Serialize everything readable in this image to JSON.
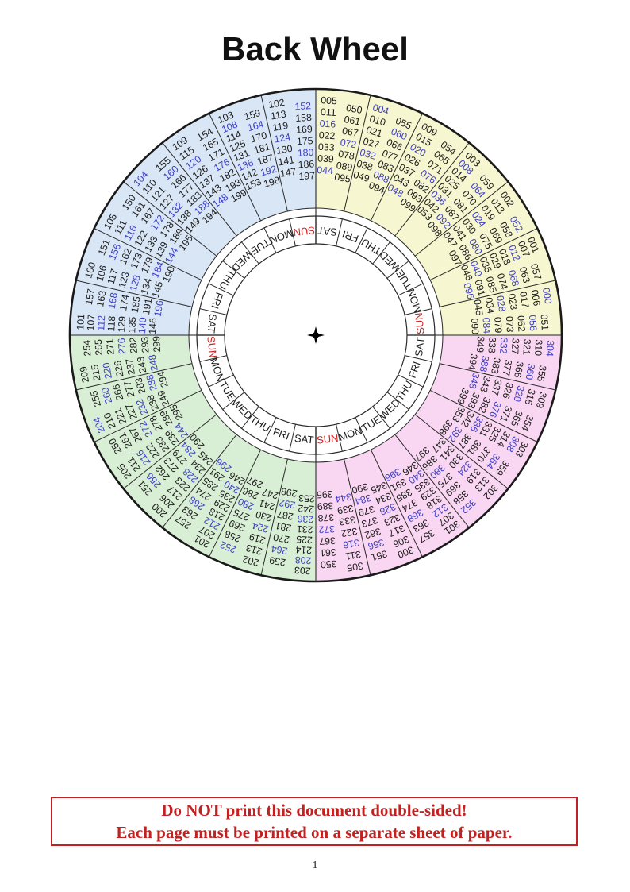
{
  "page": {
    "title": "Back Wheel",
    "page_number": "1"
  },
  "warning": {
    "line1": "Do NOT print this document double-sided!",
    "line2": "Each page must be printed on a separate sheet of paper."
  },
  "colors": {
    "number": "#1c1c1c",
    "leap_number": "#3e3ec5",
    "sunday_red": "#cc2222",
    "warning_red": "#c22121",
    "line": "#2a2a2a",
    "quadrant_line": "#666666",
    "outer_border": "#1a1a1a",
    "star": "#000000"
  },
  "day_ring": {
    "days_clockwise_from_top": [
      "SAT",
      "FRI",
      "THU",
      "WED",
      "TUE",
      "MON",
      "SUN",
      "SAT",
      "FRI",
      "THU",
      "WED",
      "TUE",
      "MON",
      "SUN",
      "SAT",
      "FRI",
      "THU",
      "WED",
      "TUE",
      "MON",
      "SUN",
      "SAT",
      "FRI",
      "THU",
      "WED",
      "TUE",
      "MON",
      "SUN"
    ],
    "highlight_day": "SUN"
  },
  "center_symbol": {
    "type": "four-pointed-star"
  },
  "wheel": {
    "quadrants": [
      {
        "name": "yellow",
        "position": "top-right",
        "color": "#f6f6d0",
        "segments": [
          {
            "columns": [
              [
                "005",
                "011",
                "016",
                "022",
                "033",
                "039",
                "044"
              ],
              [
                "050",
                "061",
                "067",
                "072",
                "078",
                "089",
                "095"
              ]
            ]
          },
          {
            "columns": [
              [
                "004",
                "010",
                "021",
                "027",
                "032",
                "038",
                "049"
              ],
              [
                "055",
                "060",
                "066",
                "077",
                "083",
                "088",
                "094"
              ]
            ]
          },
          {
            "columns": [
              [
                "009",
                "015",
                "020",
                "026",
                "037",
                "043",
                "048"
              ],
              [
                "054",
                "065",
                "071",
                "076",
                "082",
                "093",
                "099"
              ]
            ]
          },
          {
            "columns": [
              [
                "003",
                "008",
                "014",
                "025",
                "031",
                "036",
                "042",
                "053"
              ],
              [
                "059",
                "064",
                "070",
                "081",
                "087",
                "092",
                "098"
              ]
            ]
          },
          {
            "columns": [
              [
                "002",
                "013",
                "019",
                "024",
                "030",
                "041",
                "047"
              ],
              [
                "052",
                "058",
                "069",
                "075",
                "080",
                "086",
                "097"
              ]
            ]
          },
          {
            "columns": [
              [
                "001",
                "007",
                "012",
                "018",
                "029",
                "035",
                "040",
                "046"
              ],
              [
                "057",
                "063",
                "068",
                "074",
                "085",
                "091",
                "096"
              ]
            ]
          },
          {
            "columns": [
              [
                "000",
                "006",
                "017",
                "023",
                "028",
                "034",
                "045"
              ],
              [
                "051",
                "056",
                "062",
                "073",
                "079",
                "084",
                "090"
              ]
            ]
          }
        ]
      },
      {
        "name": "pink",
        "position": "bottom-right",
        "color": "#f9d6f1",
        "segments": [
          {
            "columns": [
              [
                "304",
                "310",
                "321",
                "327",
                "332",
                "338",
                "349"
              ],
              [
                "355",
                "360",
                "366",
                "377",
                "383",
                "388",
                "394"
              ]
            ]
          },
          {
            "columns": [
              [
                "309",
                "315",
                "320",
                "326",
                "337",
                "343",
                "348"
              ],
              [
                "354",
                "365",
                "371",
                "376",
                "382",
                "393",
                "399"
              ]
            ]
          },
          {
            "columns": [
              [
                "303",
                "308",
                "314",
                "325",
                "331",
                "336",
                "342",
                "353"
              ],
              [
                "359",
                "364",
                "370",
                "381",
                "387",
                "392",
                "398"
              ]
            ]
          },
          {
            "columns": [
              [
                "302",
                "313",
                "319",
                "324",
                "330",
                "341",
                "347"
              ],
              [
                "352",
                "358",
                "369",
                "375",
                "380",
                "386",
                "397"
              ]
            ]
          },
          {
            "columns": [
              [
                "301",
                "307",
                "312",
                "318",
                "329",
                "335",
                "340",
                "346"
              ],
              [
                "357",
                "363",
                "368",
                "374",
                "385",
                "391",
                "396"
              ]
            ]
          },
          {
            "columns": [
              [
                "300",
                "306",
                "317",
                "323",
                "328",
                "334",
                "345"
              ],
              [
                "351",
                "356",
                "362",
                "373",
                "379",
                "384",
                "390"
              ]
            ]
          },
          {
            "columns": [
              [
                "305",
                "311",
                "316",
                "322",
                "333",
                "339",
                "344"
              ],
              [
                "350",
                "361",
                "367",
                "372",
                "378",
                "389",
                "395"
              ]
            ]
          }
        ]
      },
      {
        "name": "green",
        "position": "bottom-left",
        "color": "#d9efd5",
        "segments": [
          {
            "columns": [
              [
                "203",
                "208",
                "214",
                "225",
                "231",
                "236",
                "242",
                "253"
              ],
              [
                "259",
                "264",
                "270",
                "281",
                "287",
                "292",
                "298"
              ]
            ]
          },
          {
            "columns": [
              [
                "202",
                "213",
                "219",
                "224",
                "230",
                "241",
                "247"
              ],
              [
                "252",
                "258",
                "269",
                "275",
                "280",
                "286",
                "297"
              ]
            ]
          },
          {
            "columns": [
              [
                "201",
                "207",
                "212",
                "218",
                "229",
                "235",
                "240",
                "246"
              ],
              [
                "257",
                "263",
                "268",
                "274",
                "285",
                "291",
                "296"
              ]
            ]
          },
          {
            "columns": [
              [
                "200",
                "206",
                "217",
                "223",
                "228",
                "234",
                "245"
              ],
              [
                "251",
                "256",
                "262",
                "273",
                "279",
                "284",
                "290"
              ]
            ]
          },
          {
            "columns": [
              [
                "205",
                "211",
                "216",
                "222",
                "233",
                "239",
                "244"
              ],
              [
                "250",
                "261",
                "267",
                "272",
                "278",
                "289",
                "295"
              ]
            ]
          },
          {
            "columns": [
              [
                "204",
                "210",
                "221",
                "227",
                "232",
                "238",
                "249"
              ],
              [
                "255",
                "260",
                "266",
                "277",
                "283",
                "288",
                "294"
              ]
            ]
          },
          {
            "columns": [
              [
                "209",
                "215",
                "220",
                "226",
                "237",
                "243",
                "248"
              ],
              [
                "254",
                "265",
                "271",
                "276",
                "282",
                "293",
                "299"
              ]
            ]
          }
        ]
      },
      {
        "name": "blue",
        "position": "top-left",
        "color": "#d9e6f6",
        "segments": [
          {
            "columns": [
              [
                "101",
                "107",
                "112",
                "118",
                "129",
                "135",
                "140",
                "146"
              ],
              [
                "157",
                "163",
                "168",
                "174",
                "185",
                "191",
                "196"
              ]
            ]
          },
          {
            "columns": [
              [
                "100",
                "106",
                "117",
                "123",
                "128",
                "134",
                "145"
              ],
              [
                "151",
                "156",
                "162",
                "173",
                "179",
                "184",
                "190"
              ]
            ]
          },
          {
            "columns": [
              [
                "105",
                "111",
                "116",
                "122",
                "133",
                "139",
                "144"
              ],
              [
                "150",
                "161",
                "167",
                "172",
                "178",
                "189",
                "195"
              ]
            ]
          },
          {
            "columns": [
              [
                "104",
                "110",
                "121",
                "127",
                "132",
                "138",
                "149"
              ],
              [
                "155",
                "160",
                "166",
                "177",
                "183",
                "188",
                "194"
              ]
            ]
          },
          {
            "columns": [
              [
                "109",
                "115",
                "120",
                "126",
                "137",
                "143",
                "148"
              ],
              [
                "154",
                "165",
                "171",
                "176",
                "182",
                "193",
                "199"
              ]
            ]
          },
          {
            "columns": [
              [
                "103",
                "108",
                "114",
                "125",
                "131",
                "136",
                "142",
                "153"
              ],
              [
                "159",
                "164",
                "170",
                "181",
                "187",
                "192",
                "198"
              ]
            ]
          },
          {
            "columns": [
              [
                "102",
                "113",
                "119",
                "124",
                "130",
                "141",
                "147"
              ],
              [
                "152",
                "158",
                "169",
                "175",
                "180",
                "186",
                "197"
              ]
            ]
          }
        ]
      }
    ]
  },
  "highlight_numbers": [
    "000",
    "004",
    "008",
    "012",
    "016",
    "020",
    "024",
    "028",
    "032",
    "036",
    "040",
    "044",
    "048",
    "052",
    "056",
    "060",
    "064",
    "068",
    "072",
    "076",
    "080",
    "084",
    "088",
    "092",
    "096",
    "104",
    "108",
    "112",
    "116",
    "120",
    "124",
    "128",
    "132",
    "136",
    "140",
    "144",
    "148",
    "152",
    "156",
    "160",
    "164",
    "168",
    "172",
    "176",
    "180",
    "184",
    "188",
    "192",
    "196",
    "204",
    "208",
    "212",
    "216",
    "220",
    "224",
    "228",
    "232",
    "236",
    "240",
    "244",
    "248",
    "252",
    "256",
    "260",
    "264",
    "268",
    "272",
    "276",
    "280",
    "284",
    "288",
    "292",
    "296",
    "304",
    "308",
    "312",
    "316",
    "320",
    "324",
    "328",
    "332",
    "336",
    "340",
    "344",
    "348",
    "352",
    "356",
    "360",
    "364",
    "368",
    "372",
    "376",
    "380",
    "384",
    "388",
    "392",
    "396"
  ]
}
